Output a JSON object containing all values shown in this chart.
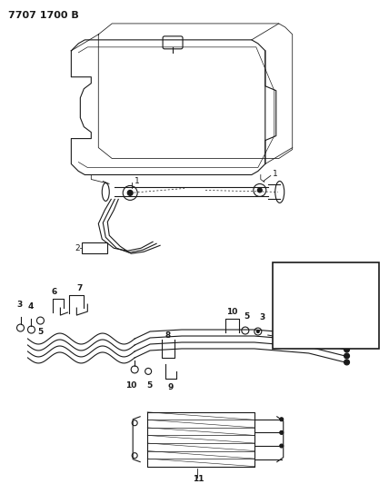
{
  "title": "7707 1700 B",
  "bg_color": "#ffffff",
  "line_color": "#1a1a1a",
  "title_fontsize": 8,
  "figsize": [
    4.28,
    5.33
  ],
  "dpi": 100
}
